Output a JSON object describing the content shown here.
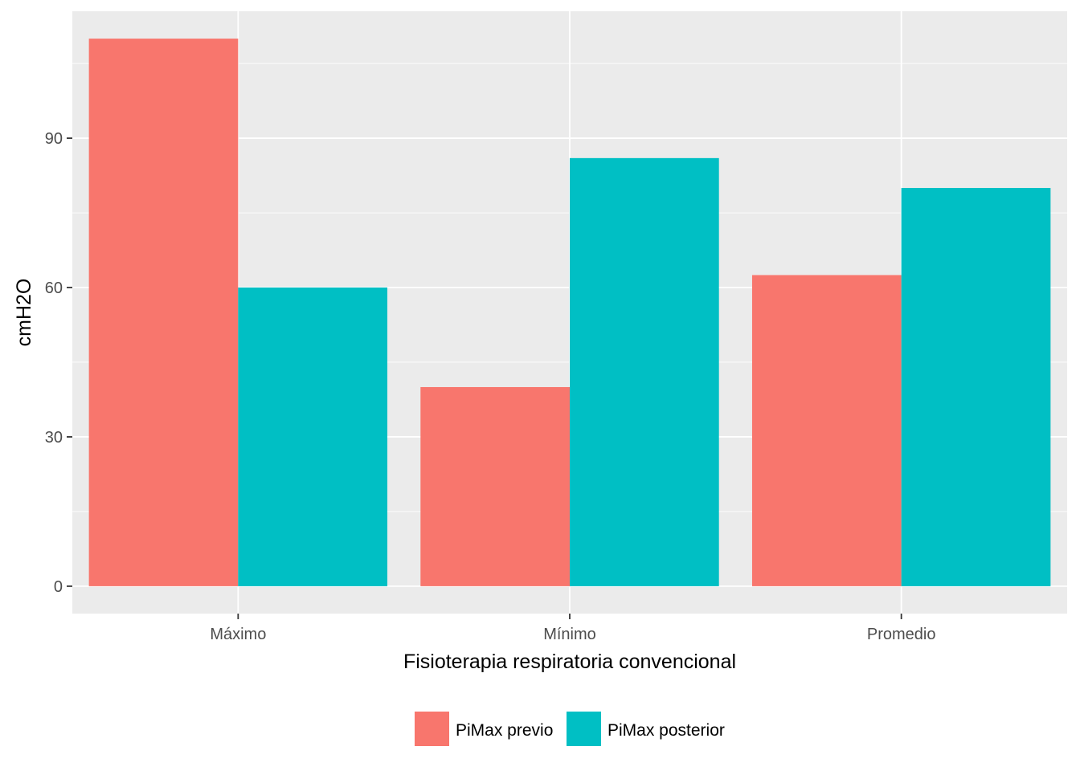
{
  "chart_data": {
    "type": "bar",
    "xlabel": "Fisioterapia respiratoria convencional",
    "ylabel": "cmH2O",
    "categories": [
      "Máximo",
      "Mínimo",
      "Promedio"
    ],
    "series": [
      {
        "name": "PiMax previo",
        "color": "#F8766D",
        "values": [
          110,
          40,
          62.5
        ]
      },
      {
        "name": "PiMax posterior",
        "color": "#00BFC4",
        "values": [
          60,
          86,
          80
        ]
      }
    ],
    "ylim": [
      -5.5,
      115.5
    ],
    "yticks": [
      0,
      30,
      60,
      90
    ],
    "grid": true,
    "panel_background": "#EBEBEB",
    "legend_position": "bottom"
  }
}
